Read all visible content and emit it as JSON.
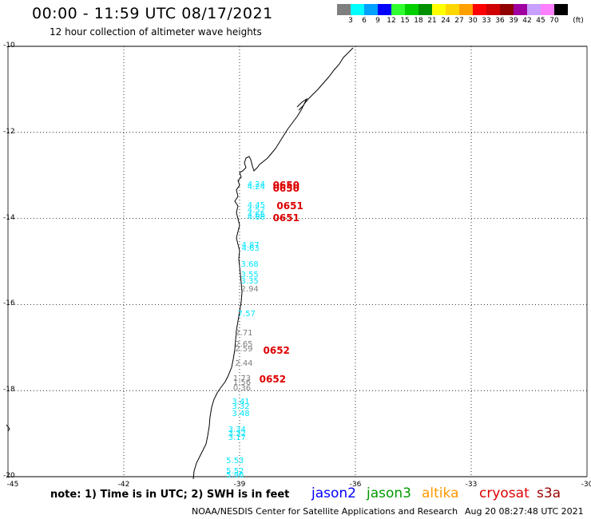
{
  "title": "00:00 - 11:59 UTC 08/17/2021",
  "subtitle": "12 hour collection of altimeter wave heights",
  "legend": {
    "unit": "(ft)",
    "entries": [
      {
        "color": "#7f7f7f",
        "label": "3"
      },
      {
        "color": "#00ffff",
        "label": "6"
      },
      {
        "color": "#00a0ff",
        "label": "9"
      },
      {
        "color": "#0000ff",
        "label": "12"
      },
      {
        "color": "#30ff30",
        "label": "15"
      },
      {
        "color": "#00d000",
        "label": "18"
      },
      {
        "color": "#009000",
        "label": "21"
      },
      {
        "color": "#ffff00",
        "label": "24"
      },
      {
        "color": "#ffd700",
        "label": "27"
      },
      {
        "color": "#ffa000",
        "label": "30"
      },
      {
        "color": "#ff0000",
        "label": "33"
      },
      {
        "color": "#d00000",
        "label": "36"
      },
      {
        "color": "#900000",
        "label": "39"
      },
      {
        "color": "#a000a0",
        "label": "42"
      },
      {
        "color": "#c8a0ff",
        "label": "45"
      },
      {
        "color": "#ff80ff",
        "label": "70"
      },
      {
        "color": "#000000",
        "label": ""
      }
    ]
  },
  "axes": {
    "lat_labels": [
      "-10",
      "-12",
      "-14",
      "-16",
      "-18",
      "-20"
    ],
    "lon_labels": [
      "-45",
      "-42",
      "-39",
      "-36",
      "-33",
      "-30"
    ]
  },
  "chart_data": {
    "type": "map",
    "lat_range": [
      -20,
      -10
    ],
    "lon_range": [
      -45,
      -30
    ],
    "grid": true,
    "wave_heights": [
      {
        "value": "4.24",
        "lat": -13.25,
        "lon": -38.55,
        "color": "#00e5ff"
      },
      {
        "value": "4.24",
        "lat": -13.3,
        "lon": -38.55,
        "color": "#00e5ff"
      },
      {
        "value": "4.45",
        "lat": -13.72,
        "lon": -38.55,
        "color": "#00e5ff"
      },
      {
        "value": "4.52",
        "lat": -13.84,
        "lon": -38.55,
        "color": "#00e5ff"
      },
      {
        "value": "4.66",
        "lat": -13.95,
        "lon": -38.55,
        "color": "#00e5ff"
      },
      {
        "value": "4.66",
        "lat": -14.0,
        "lon": -38.55,
        "color": "#00e5ff"
      },
      {
        "value": "4.87",
        "lat": -14.65,
        "lon": -38.7,
        "color": "#00e5ff"
      },
      {
        "value": "4.63",
        "lat": -14.73,
        "lon": -38.7,
        "color": "#00e5ff"
      },
      {
        "value": "3.68",
        "lat": -15.1,
        "lon": -38.72,
        "color": "#00e5ff"
      },
      {
        "value": "3.55",
        "lat": -15.35,
        "lon": -38.72,
        "color": "#00e5ff"
      },
      {
        "value": "3.35",
        "lat": -15.5,
        "lon": -38.72,
        "color": "#00e5ff"
      },
      {
        "value": "2.94",
        "lat": -15.67,
        "lon": -38.72,
        "color": "#808080"
      },
      {
        "value": "7.57",
        "lat": -16.25,
        "lon": -38.8,
        "color": "#00e5ff"
      },
      {
        "value": "2.71",
        "lat": -16.7,
        "lon": -38.87,
        "color": "#808080"
      },
      {
        "value": "2.65",
        "lat": -16.95,
        "lon": -38.87,
        "color": "#808080"
      },
      {
        "value": "2.59",
        "lat": -17.07,
        "lon": -38.87,
        "color": "#808080"
      },
      {
        "value": "2.44",
        "lat": -17.4,
        "lon": -38.87,
        "color": "#808080"
      },
      {
        "value": "1.73",
        "lat": -17.75,
        "lon": -38.92,
        "color": "#808080"
      },
      {
        "value": "1.56",
        "lat": -17.85,
        "lon": -38.92,
        "color": "#808080"
      },
      {
        "value": "0.36",
        "lat": -17.97,
        "lon": -38.92,
        "color": "#808080"
      },
      {
        "value": "3.41",
        "lat": -18.3,
        "lon": -38.95,
        "color": "#00e5ff"
      },
      {
        "value": "3.32",
        "lat": -18.4,
        "lon": -38.95,
        "color": "#00e5ff"
      },
      {
        "value": "3.48",
        "lat": -18.58,
        "lon": -38.95,
        "color": "#00e5ff"
      },
      {
        "value": "3.34",
        "lat": -18.95,
        "lon": -39.05,
        "color": "#00e5ff"
      },
      {
        "value": "3.32",
        "lat": -19.03,
        "lon": -39.05,
        "color": "#00e5ff"
      },
      {
        "value": "3.17",
        "lat": -19.12,
        "lon": -39.05,
        "color": "#00e5ff"
      },
      {
        "value": "5.53",
        "lat": -19.67,
        "lon": -39.1,
        "color": "#00e5ff"
      },
      {
        "value": "5.52",
        "lat": -19.9,
        "lon": -39.1,
        "color": "#00e5ff"
      },
      {
        "value": "5.96",
        "lat": -20.0,
        "lon": -39.1,
        "color": "#00e5ff"
      }
    ],
    "pass_labels": [
      {
        "value": "0650",
        "lat": -13.25,
        "lon": -37.85
      },
      {
        "value": "0650",
        "lat": -13.32,
        "lon": -37.85
      },
      {
        "value": "0651",
        "lat": -13.72,
        "lon": -37.75
      },
      {
        "value": "0651",
        "lat": -14.0,
        "lon": -37.85
      },
      {
        "value": "0652",
        "lat": -17.08,
        "lon": -38.1
      },
      {
        "value": "0652",
        "lat": -17.75,
        "lon": -38.2
      }
    ]
  },
  "footer": {
    "note": "note: 1) Time is in UTC; 2) SWH is in feet",
    "satellites": [
      {
        "name": "jason2",
        "color": "#0000ff"
      },
      {
        "name": "jason3",
        "color": "#009900"
      },
      {
        "name": "altika",
        "color": "#ff9900"
      },
      {
        "name": "cryosat",
        "color": "#dd0000"
      },
      {
        "name": "s3a",
        "color": "#990000"
      }
    ],
    "credit": "NOAA/NESDIS Center for Satellite Applications and Research",
    "timestamp": "Aug 20 08:27:48 UTC 2021"
  }
}
